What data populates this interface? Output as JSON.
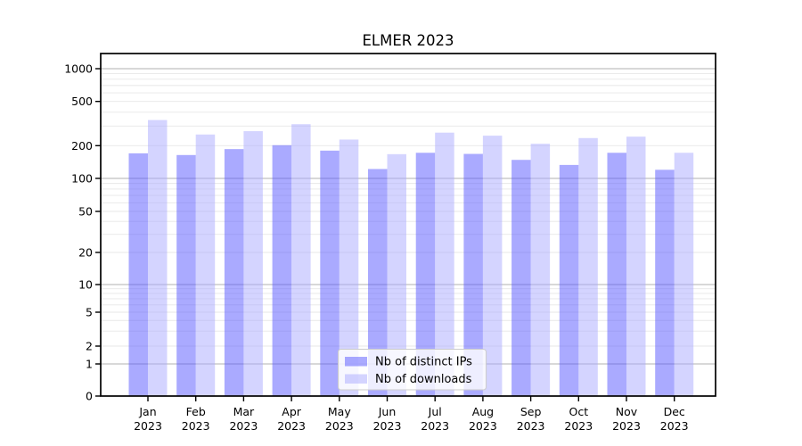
{
  "chart_data": {
    "type": "bar",
    "title": "ELMER 2023",
    "categories": [
      "Jan",
      "Feb",
      "Mar",
      "Apr",
      "May",
      "Jun",
      "Jul",
      "Aug",
      "Sep",
      "Oct",
      "Nov",
      "Dec"
    ],
    "year_label": "2023",
    "series": [
      {
        "name": "Nb of distinct IPs",
        "color": "rgba(85,85,255,0.5)",
        "values": [
          170,
          164,
          186,
          202,
          180,
          122,
          172,
          168,
          148,
          133,
          172,
          120
        ]
      },
      {
        "name": "Nb of downloads",
        "color": "rgba(170,170,255,0.5)",
        "values": [
          340,
          252,
          270,
          312,
          227,
          167,
          262,
          246,
          208,
          234,
          241,
          172
        ]
      }
    ],
    "xlabel": "",
    "ylabel": "",
    "yscale": "symlog",
    "y_ticks": [
      0,
      1,
      2,
      5,
      10,
      20,
      50,
      100,
      200,
      500,
      1000
    ],
    "ylim": [
      0,
      1400
    ],
    "grid": "on",
    "legend_position": "inside lower center",
    "colors": {
      "axis": "#000000",
      "major_grid": "#b0b0b0",
      "minor_grid": "#e7e7e7",
      "legend_border": "#cccccc",
      "legend_bg": "#ffffff"
    }
  }
}
